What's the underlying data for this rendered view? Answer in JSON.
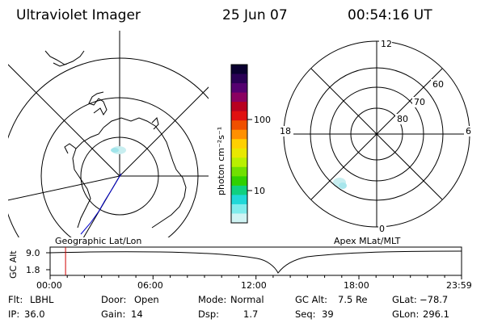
{
  "header": {
    "instrument": "Ultraviolet Imager",
    "date": "25 Jun 07",
    "time": "00:54:16 UT"
  },
  "colorbar": {
    "unit_label": "photon cm⁻²s⁻¹",
    "ticks": [
      "100",
      "10"
    ],
    "colors": [
      "#0a0030",
      "#2a0055",
      "#550070",
      "#8a0060",
      "#b80020",
      "#e01010",
      "#f05000",
      "#ff9000",
      "#ffd000",
      "#e8e800",
      "#b8f000",
      "#70e000",
      "#30d000",
      "#10d080",
      "#20d8d8",
      "#80ecec",
      "#d0f4f4"
    ]
  },
  "left_map": {
    "caption": "Geographic Lat/Lon"
  },
  "right_map": {
    "caption": "Apex MLat/MLT",
    "mlt_labels": [
      "12",
      "18",
      "6",
      "0"
    ],
    "lat_labels": [
      "60",
      "70",
      "80"
    ]
  },
  "timeline": {
    "ylabel": "GC Alt",
    "y_ticks": [
      "9.0",
      "1.8"
    ],
    "x_ticks": [
      "00:00",
      "06:00",
      "12:00",
      "18:00",
      "23:59"
    ],
    "marker_time": "00:54",
    "marker_color": "#d00000"
  },
  "status": {
    "row1": [
      {
        "label": "Flt:",
        "value": "LBHL"
      },
      {
        "label": "Door:",
        "value": "Open"
      },
      {
        "label": "Mode:",
        "value": "Normal"
      },
      {
        "label": "GC Alt:",
        "value": "7.5 Re"
      },
      {
        "label": "GLat:",
        "value": "−78.7"
      }
    ],
    "row2": [
      {
        "label": "IP:",
        "value": "36.0"
      },
      {
        "label": "Gain:",
        "value": "14"
      },
      {
        "label": "Dsp:",
        "value": "1.7"
      },
      {
        "label": "Seq:",
        "value": "39"
      },
      {
        "label": "GLon:",
        "value": "296.1"
      }
    ]
  }
}
